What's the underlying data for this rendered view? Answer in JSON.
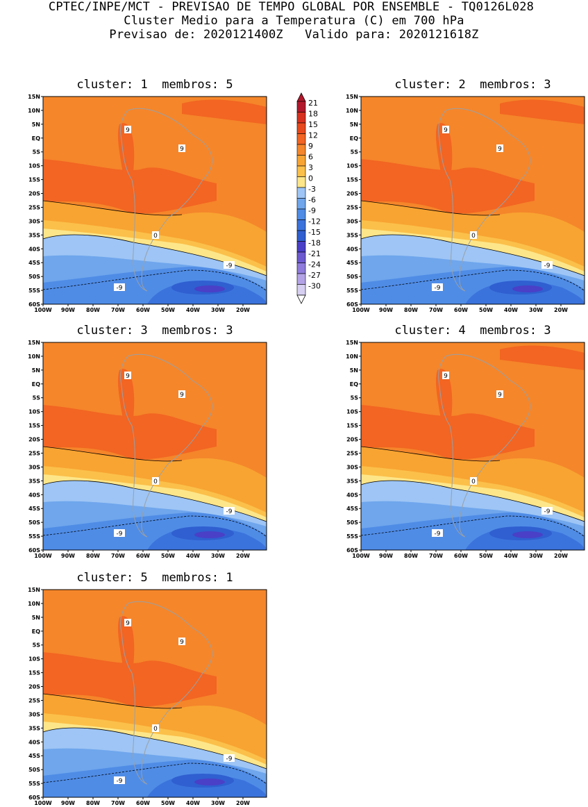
{
  "header": {
    "line1": "CPTEC/INPE/MCT - PREVISAO DE TEMPO GLOBAL POR ENSEMBLE - TQ0126L028",
    "line2": "Cluster Medio para a Temperatura (C) em 700 hPa",
    "line3": "Previsao de: 2020121400Z   Valido para: 2020121618Z"
  },
  "panels": [
    {
      "title": "cluster: 1  membros: 5"
    },
    {
      "title": "cluster: 2  membros: 3"
    },
    {
      "title": "cluster: 3  membros: 3"
    },
    {
      "title": "cluster: 4  membros: 3"
    },
    {
      "title": "cluster: 5  membros: 1"
    }
  ],
  "lat_labels": [
    "15N",
    "10N",
    "5N",
    "EQ",
    "5S",
    "10S",
    "15S",
    "20S",
    "25S",
    "30S",
    "35S",
    "40S",
    "45S",
    "50S",
    "55S",
    "60S"
  ],
  "lon_labels": [
    "100W",
    "90W",
    "80W",
    "70W",
    "60W",
    "50W",
    "40W",
    "30W",
    "20W"
  ],
  "contour_labels": {
    "warm": "9",
    "zero": "0",
    "cold": "-9"
  },
  "colorbar": {
    "levels": [
      "21",
      "18",
      "15",
      "12",
      "9",
      "6",
      "3",
      "0",
      "-3",
      "-6",
      "-9",
      "-12",
      "-15",
      "-18",
      "-21",
      "-24",
      "-27",
      "-30"
    ],
    "colors": [
      "#b2182b",
      "#d7301f",
      "#e8491c",
      "#f26522",
      "#f5862a",
      "#f8a432",
      "#fbc04a",
      "#fde68a",
      "#9ec5f5",
      "#6fa6ec",
      "#4f8ce6",
      "#3b73dc",
      "#2f5fd0",
      "#4a3fc7",
      "#6d5ad1",
      "#8e7bdb",
      "#b3a3e6",
      "#d7cff1"
    ]
  },
  "colors": {
    "warm12": "#f26522",
    "warm9": "#f5862a",
    "warm6": "#f8a432",
    "warm3": "#fbc04a",
    "warm0": "#fde68a",
    "cold3": "#9ec5f5",
    "cold6": "#6fa6ec",
    "cold9": "#4f8ce6",
    "cold12": "#3b73dc",
    "cold15": "#2f5fd0",
    "cold18": "#4a3fc7",
    "land": "#9aa0a6"
  }
}
